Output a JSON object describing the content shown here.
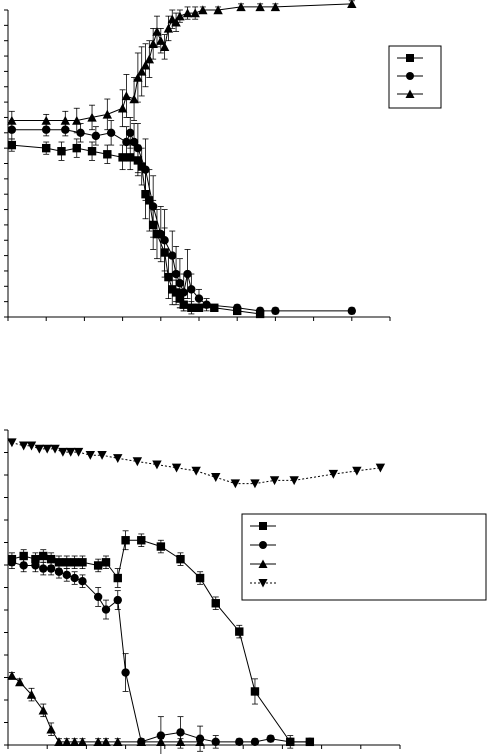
{
  "chart_data": [
    {
      "type": "line",
      "title": "",
      "xlabel": "",
      "ylabel": "",
      "xlim": [
        0,
        100
      ],
      "ylim": [
        0,
        100
      ],
      "grid": false,
      "legend_position": "right",
      "series": [
        {
          "marker": "square",
          "line": "solid",
          "points": [
            {
              "x": 1,
              "y": 56,
              "err": 2
            },
            {
              "x": 10,
              "y": 55,
              "err": 2
            },
            {
              "x": 14,
              "y": 54,
              "err": 3
            },
            {
              "x": 18,
              "y": 55,
              "err": 3
            },
            {
              "x": 22,
              "y": 54,
              "err": 3
            },
            {
              "x": 26,
              "y": 53,
              "err": 3
            },
            {
              "x": 30,
              "y": 52,
              "err": 4
            },
            {
              "x": 32,
              "y": 52,
              "err": 4
            },
            {
              "x": 34,
              "y": 51,
              "err": 5
            },
            {
              "x": 35,
              "y": 49,
              "err": 6
            },
            {
              "x": 36,
              "y": 40,
              "err": 8
            },
            {
              "x": 37,
              "y": 38,
              "err": 10
            },
            {
              "x": 38,
              "y": 30,
              "err": 8
            },
            {
              "x": 39,
              "y": 27,
              "err": 8
            },
            {
              "x": 41,
              "y": 21,
              "err": 8
            },
            {
              "x": 42,
              "y": 13,
              "err": 7
            },
            {
              "x": 43,
              "y": 9,
              "err": 5
            },
            {
              "x": 44,
              "y": 8,
              "err": 4
            },
            {
              "x": 45,
              "y": 6,
              "err": 3
            },
            {
              "x": 46,
              "y": 4,
              "err": 2
            },
            {
              "x": 48,
              "y": 3,
              "err": 2
            },
            {
              "x": 50,
              "y": 3,
              "err": 1
            },
            {
              "x": 54,
              "y": 3,
              "err": 1
            },
            {
              "x": 60,
              "y": 2,
              "err": 1
            },
            {
              "x": 66,
              "y": 1,
              "err": 1
            }
          ]
        },
        {
          "marker": "circle",
          "line": "solid",
          "points": [
            {
              "x": 1,
              "y": 61,
              "err": 3
            },
            {
              "x": 10,
              "y": 61,
              "err": 2
            },
            {
              "x": 15,
              "y": 61,
              "err": 2
            },
            {
              "x": 19,
              "y": 60,
              "err": 3
            },
            {
              "x": 23,
              "y": 59,
              "err": 3
            },
            {
              "x": 27,
              "y": 60,
              "err": 4
            },
            {
              "x": 31,
              "y": 57,
              "err": 5
            },
            {
              "x": 32,
              "y": 60,
              "err": 5
            },
            {
              "x": 33,
              "y": 57,
              "err": 6
            },
            {
              "x": 34,
              "y": 55,
              "err": 8
            },
            {
              "x": 36,
              "y": 48,
              "err": 10
            },
            {
              "x": 38,
              "y": 36,
              "err": 10
            },
            {
              "x": 40,
              "y": 27,
              "err": 9
            },
            {
              "x": 41,
              "y": 25,
              "err": 10
            },
            {
              "x": 43,
              "y": 20,
              "err": 8
            },
            {
              "x": 44,
              "y": 14,
              "err": 9
            },
            {
              "x": 45,
              "y": 11,
              "err": 8
            },
            {
              "x": 46,
              "y": 8,
              "err": 6
            },
            {
              "x": 47,
              "y": 14,
              "err": 8
            },
            {
              "x": 48,
              "y": 9,
              "err": 5
            },
            {
              "x": 50,
              "y": 6,
              "err": 3
            },
            {
              "x": 52,
              "y": 4,
              "err": 2
            },
            {
              "x": 60,
              "y": 3,
              "err": 1
            },
            {
              "x": 66,
              "y": 2,
              "err": 1
            },
            {
              "x": 70,
              "y": 2,
              "err": 1
            },
            {
              "x": 90,
              "y": 2,
              "err": 1
            }
          ]
        },
        {
          "marker": "triangle-up",
          "line": "solid",
          "points": [
            {
              "x": 1,
              "y": 64,
              "err": 3
            },
            {
              "x": 10,
              "y": 64,
              "err": 2
            },
            {
              "x": 15,
              "y": 64,
              "err": 3
            },
            {
              "x": 18,
              "y": 64,
              "err": 4
            },
            {
              "x": 22,
              "y": 65,
              "err": 4
            },
            {
              "x": 26,
              "y": 66,
              "err": 5
            },
            {
              "x": 30,
              "y": 68,
              "err": 6
            },
            {
              "x": 31,
              "y": 72,
              "err": 7
            },
            {
              "x": 33,
              "y": 71,
              "err": 7
            },
            {
              "x": 34,
              "y": 78,
              "err": 8
            },
            {
              "x": 35,
              "y": 80,
              "err": 8
            },
            {
              "x": 36,
              "y": 82,
              "err": 7
            },
            {
              "x": 37,
              "y": 84,
              "err": 6
            },
            {
              "x": 38,
              "y": 89,
              "err": 5
            },
            {
              "x": 39,
              "y": 93,
              "err": 5
            },
            {
              "x": 40,
              "y": 90,
              "err": 4
            },
            {
              "x": 41,
              "y": 88,
              "err": 4
            },
            {
              "x": 42,
              "y": 94,
              "err": 4
            },
            {
              "x": 43,
              "y": 97,
              "err": 3
            },
            {
              "x": 44,
              "y": 96,
              "err": 3
            },
            {
              "x": 45,
              "y": 98,
              "err": 2
            },
            {
              "x": 47,
              "y": 99,
              "err": 2
            },
            {
              "x": 49,
              "y": 99,
              "err": 2
            },
            {
              "x": 51,
              "y": 100,
              "err": 1
            },
            {
              "x": 55,
              "y": 100,
              "err": 1
            },
            {
              "x": 61,
              "y": 101,
              "err": 1
            },
            {
              "x": 66,
              "y": 101,
              "err": 1
            },
            {
              "x": 70,
              "y": 101,
              "err": 1
            },
            {
              "x": 90,
              "y": 102,
              "err": 1
            }
          ]
        }
      ]
    },
    {
      "type": "line",
      "title": "",
      "xlabel": "",
      "ylabel": "",
      "xlim": [
        0,
        100
      ],
      "ylim": [
        0,
        100
      ],
      "grid": false,
      "legend_position": "right",
      "series": [
        {
          "marker": "square",
          "line": "solid",
          "points": [
            {
              "x": 1,
              "y": 59,
              "err": 2
            },
            {
              "x": 4,
              "y": 60,
              "err": 2
            },
            {
              "x": 7,
              "y": 59,
              "err": 2
            },
            {
              "x": 9,
              "y": 60,
              "err": 2
            },
            {
              "x": 11,
              "y": 59,
              "err": 2
            },
            {
              "x": 13,
              "y": 58,
              "err": 2
            },
            {
              "x": 15,
              "y": 58,
              "err": 2
            },
            {
              "x": 17,
              "y": 58,
              "err": 2
            },
            {
              "x": 19,
              "y": 58,
              "err": 2
            },
            {
              "x": 23,
              "y": 57,
              "err": 2
            },
            {
              "x": 25,
              "y": 58,
              "err": 2
            },
            {
              "x": 28,
              "y": 53,
              "err": 3
            },
            {
              "x": 30,
              "y": 65,
              "err": 3
            },
            {
              "x": 34,
              "y": 65,
              "err": 2
            },
            {
              "x": 39,
              "y": 63,
              "err": 2
            },
            {
              "x": 44,
              "y": 59,
              "err": 2
            },
            {
              "x": 49,
              "y": 53,
              "err": 2
            },
            {
              "x": 53,
              "y": 45,
              "err": 2
            },
            {
              "x": 59,
              "y": 36,
              "err": 2
            },
            {
              "x": 63,
              "y": 17,
              "err": 4
            },
            {
              "x": 72,
              "y": 1,
              "err": 1
            },
            {
              "x": 77,
              "y": 1,
              "err": 1
            }
          ]
        },
        {
          "marker": "circle",
          "line": "solid",
          "points": [
            {
              "x": 1,
              "y": 58,
              "err": 2
            },
            {
              "x": 4,
              "y": 57,
              "err": 2
            },
            {
              "x": 7,
              "y": 57,
              "err": 2
            },
            {
              "x": 9,
              "y": 56,
              "err": 2
            },
            {
              "x": 11,
              "y": 56,
              "err": 2
            },
            {
              "x": 13,
              "y": 55,
              "err": 2
            },
            {
              "x": 15,
              "y": 54,
              "err": 2
            },
            {
              "x": 17,
              "y": 53,
              "err": 2
            },
            {
              "x": 19,
              "y": 52,
              "err": 2
            },
            {
              "x": 23,
              "y": 47,
              "err": 3
            },
            {
              "x": 25,
              "y": 43,
              "err": 3
            },
            {
              "x": 28,
              "y": 46,
              "err": 3
            },
            {
              "x": 30,
              "y": 23,
              "err": 6
            },
            {
              "x": 34,
              "y": 1,
              "err": 1
            },
            {
              "x": 39,
              "y": 3,
              "err": 6
            },
            {
              "x": 44,
              "y": 4,
              "err": 5
            },
            {
              "x": 49,
              "y": 2,
              "err": 4
            },
            {
              "x": 53,
              "y": 1,
              "err": 2
            },
            {
              "x": 59,
              "y": 1,
              "err": 1
            },
            {
              "x": 63,
              "y": 1,
              "err": 1
            },
            {
              "x": 67,
              "y": 2,
              "err": 1
            },
            {
              "x": 72,
              "y": 1,
              "err": 2
            },
            {
              "x": 77,
              "y": 1,
              "err": 1
            }
          ]
        },
        {
          "marker": "triangle-up",
          "line": "solid",
          "points": [
            {
              "x": 1,
              "y": 22,
              "err": 1
            },
            {
              "x": 3,
              "y": 20,
              "err": 1
            },
            {
              "x": 6,
              "y": 16,
              "err": 2
            },
            {
              "x": 9,
              "y": 11,
              "err": 2
            },
            {
              "x": 11,
              "y": 5,
              "err": 2
            },
            {
              "x": 13,
              "y": 1,
              "err": 1
            },
            {
              "x": 15,
              "y": 1,
              "err": 1
            },
            {
              "x": 17,
              "y": 1,
              "err": 1
            },
            {
              "x": 19,
              "y": 1,
              "err": 1
            },
            {
              "x": 23,
              "y": 1,
              "err": 1
            },
            {
              "x": 25,
              "y": 1,
              "err": 1
            },
            {
              "x": 28,
              "y": 1,
              "err": 1
            },
            {
              "x": 34,
              "y": 1,
              "err": 1
            },
            {
              "x": 39,
              "y": 1,
              "err": 1
            },
            {
              "x": 44,
              "y": 1,
              "err": 1
            },
            {
              "x": 49,
              "y": 1,
              "err": 1
            }
          ]
        },
        {
          "marker": "triangle-down",
          "line": "dotted",
          "points": [
            {
              "x": 1,
              "y": 96
            },
            {
              "x": 4,
              "y": 95
            },
            {
              "x": 6,
              "y": 95
            },
            {
              "x": 8,
              "y": 94
            },
            {
              "x": 10,
              "y": 94
            },
            {
              "x": 12,
              "y": 94
            },
            {
              "x": 14,
              "y": 93
            },
            {
              "x": 16,
              "y": 93
            },
            {
              "x": 18,
              "y": 93
            },
            {
              "x": 21,
              "y": 92
            },
            {
              "x": 24,
              "y": 92
            },
            {
              "x": 28,
              "y": 91
            },
            {
              "x": 33,
              "y": 90
            },
            {
              "x": 38,
              "y": 89
            },
            {
              "x": 43,
              "y": 88
            },
            {
              "x": 48,
              "y": 87
            },
            {
              "x": 53,
              "y": 85
            },
            {
              "x": 58,
              "y": 83
            },
            {
              "x": 63,
              "y": 83
            },
            {
              "x": 68,
              "y": 84
            },
            {
              "x": 73,
              "y": 84
            },
            {
              "x": 83,
              "y": 86
            },
            {
              "x": 89,
              "y": 87
            },
            {
              "x": 95,
              "y": 88
            }
          ]
        }
      ]
    }
  ]
}
